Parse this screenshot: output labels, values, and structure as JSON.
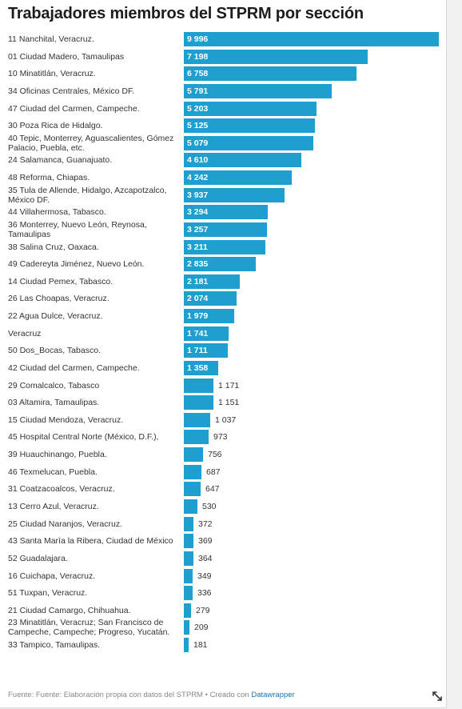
{
  "chart_data": {
    "type": "bar",
    "orientation": "horizontal",
    "title": "Trabajadores miembros del STPRM por sección",
    "bar_color": "#1f9fd0",
    "categories": [
      "11 Nanchital, Veracruz.",
      "01 Ciudad Madero, Tamaulipas",
      "10 Minatitlán, Veracruz.",
      "34 Oficinas Centrales, México DF.",
      "47 Ciudad del Carmen, Campeche.",
      "30 Poza Rica de Hidalgo.",
      "40 Tepic, Monterrey, Aguascalientes, Gómez Palacio, Puebla, etc.",
      "24 Salamanca, Guanajuato.",
      "48 Reforma, Chiapas.",
      "35 Tula de Allende, Hidalgo, Azcapotzalco, México DF.",
      "44 Villahermosa, Tabasco.",
      "36 Monterrey, Nuevo León, Reynosa, Tamaulipas",
      "38 Salina Cruz, Oaxaca.",
      "49 Cadereyta Jiménez, Nuevo León.",
      "14 Ciudad Pemex, Tabasco.",
      "26 Las Choapas, Veracruz.",
      "22 Agua Dulce, Veracruz.",
      "Veracruz",
      "50 Dos_Bocas, Tabasco.",
      "42 Ciudad del Carmen, Campeche.",
      "29 Comalcalco, Tabasco",
      "03 Altamira, Tamaulipas.",
      "15 Ciudad Mendoza, Veracruz.",
      "45 Hospital Central Norte (México, D.F.),",
      "39 Huauchinango, Puebla.",
      "46 Texmelucan, Puebla.",
      "31 Coatzacoalcos, Veracruz.",
      "13 Cerro Azul, Veracruz.",
      "25 Ciudad Naranjos, Veracruz.",
      "43 Santa María la Ribera, Ciudad de México",
      "52 Guadalajara.",
      "16 Cuichapa, Veracruz.",
      "51 Tuxpan, Veracruz.",
      "21 Ciudad Camargo, Chihuahua.",
      "23 Minatitlán, Veracruz; San Francisco de Campeche, Campeche; Progreso, Yucatán.",
      "33 Tampico, Tamaulipas."
    ],
    "values": [
      9996,
      7198,
      6758,
      5791,
      5203,
      5125,
      5079,
      4610,
      4242,
      3937,
      3294,
      3257,
      3211,
      2835,
      2181,
      2074,
      1979,
      1741,
      1711,
      1358,
      1171,
      1151,
      1037,
      973,
      756,
      687,
      647,
      530,
      372,
      369,
      364,
      349,
      336,
      279,
      209,
      181
    ],
    "value_labels": [
      "9 996",
      "7 198",
      "6 758",
      "5 791",
      "5 203",
      "5 125",
      "5 079",
      "4 610",
      "4 242",
      "3 937",
      "3 294",
      "3 257",
      "3 211",
      "2 835",
      "2 181",
      "2 074",
      "1 979",
      "1 741",
      "1 711",
      "1 358",
      "1 171",
      "1 151",
      "1 037",
      "973",
      "756",
      "687",
      "647",
      "530",
      "372",
      "369",
      "364",
      "349",
      "336",
      "279",
      "209",
      "181"
    ],
    "xlim": [
      0,
      9996
    ]
  },
  "footer": {
    "text": "Fuente: Fuente: Elaboración propia con datos del STPRM • Creado con ",
    "link": "Datawrapper"
  },
  "icons": {
    "expand": "expand-arrows-icon"
  }
}
